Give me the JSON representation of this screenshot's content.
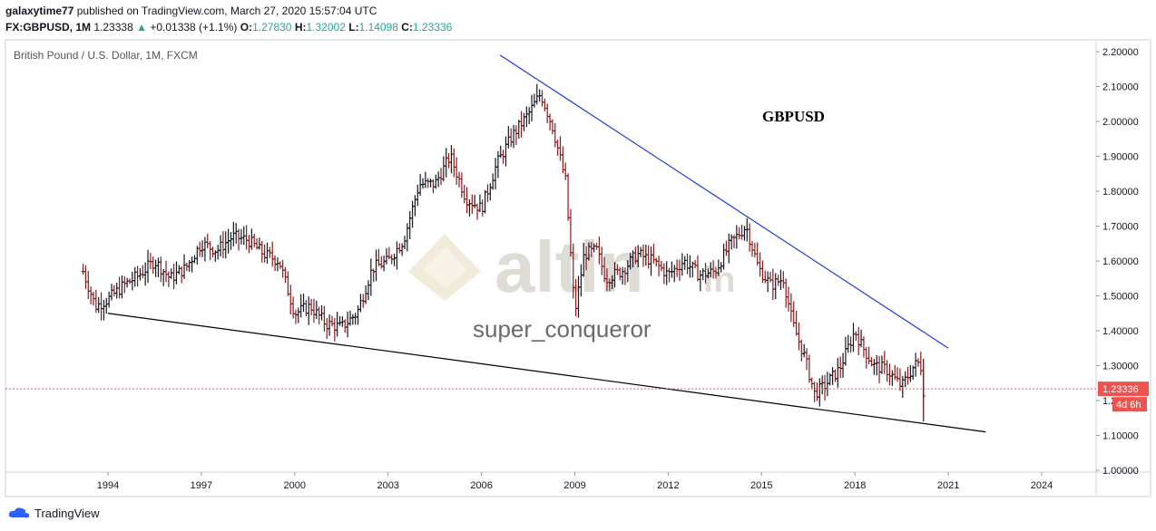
{
  "header": {
    "line1": {
      "user": "galaxytime77",
      "published": "published on TradingView.com, March 27, 2020 15:57:04 UTC"
    },
    "line2": {
      "symbol": "FX:GBPUSD, 1M",
      "last": "1.23338",
      "arrow": "▲",
      "change": "+0.01338 (+1.1%)",
      "o_label": "O:",
      "o": "1.27830",
      "h_label": "H:",
      "h": "1.32002",
      "l_label": "L:",
      "l": "1.14098",
      "c_label": "C:",
      "c": "1.23336"
    }
  },
  "watermark": {
    "brand": "altin",
    "brand_suffix": "in",
    "author": "super_conqueror"
  },
  "footer": {
    "brand": "TradingView"
  },
  "colors": {
    "up": "#26a69a",
    "bar": "#131722",
    "down_bar": "#8b1a1a",
    "trend_upper": "#1f3fd6",
    "trend_lower": "#000000",
    "price_marker": "#ef5350"
  },
  "chart_data": {
    "type": "ohlc",
    "title": "British Pound / U.S. Dollar, 1M, FXCM",
    "annotation": "GBPUSD",
    "x_tick_labels": [
      "1994",
      "1997",
      "2000",
      "2003",
      "2006",
      "2009",
      "2012",
      "2015",
      "2018",
      "2021",
      "2024"
    ],
    "y_tick_labels": [
      "1.00000",
      "1.10000",
      "1.20000",
      "1.30000",
      "1.40000",
      "1.50000",
      "1.60000",
      "1.70000",
      "1.80000",
      "1.90000",
      "2.00000",
      "2.10000",
      "2.20000"
    ],
    "ylim": [
      1.0,
      2.2
    ],
    "xlim": [
      1993.0,
      2026.0
    ],
    "last_price": "1.23336",
    "countdown": "4d 6h",
    "price_series": {
      "x": [
        1993.2,
        1993.6,
        1994.0,
        1994.5,
        1995.0,
        1995.5,
        1996.0,
        1996.5,
        1997.0,
        1997.5,
        1998.0,
        1998.5,
        1999.0,
        1999.5,
        2000.0,
        2000.5,
        2001.0,
        2001.5,
        2002.0,
        2002.5,
        2003.0,
        2003.5,
        2004.0,
        2004.5,
        2005.0,
        2005.5,
        2006.0,
        2006.5,
        2007.0,
        2007.5,
        2007.9,
        2008.3,
        2008.7,
        2009.0,
        2009.3,
        2009.7,
        2010.0,
        2010.5,
        2011.0,
        2011.5,
        2012.0,
        2012.5,
        2013.0,
        2013.5,
        2014.0,
        2014.5,
        2014.9,
        2015.3,
        2015.7,
        2016.0,
        2016.4,
        2016.7,
        2017.0,
        2017.5,
        2018.0,
        2018.2,
        2018.6,
        2019.0,
        2019.5,
        2019.9,
        2020.1,
        2020.2
      ],
      "y": [
        1.57,
        1.47,
        1.49,
        1.53,
        1.56,
        1.6,
        1.55,
        1.58,
        1.65,
        1.63,
        1.67,
        1.66,
        1.62,
        1.6,
        1.45,
        1.47,
        1.42,
        1.41,
        1.45,
        1.58,
        1.6,
        1.66,
        1.82,
        1.82,
        1.9,
        1.78,
        1.75,
        1.88,
        1.96,
        2.02,
        2.08,
        1.98,
        1.83,
        1.45,
        1.62,
        1.63,
        1.55,
        1.57,
        1.62,
        1.6,
        1.56,
        1.6,
        1.56,
        1.57,
        1.65,
        1.7,
        1.58,
        1.53,
        1.55,
        1.42,
        1.32,
        1.22,
        1.24,
        1.29,
        1.4,
        1.36,
        1.3,
        1.29,
        1.24,
        1.3,
        1.31,
        1.23
      ]
    },
    "trendlines": [
      {
        "name": "upper",
        "x": [
          2006.6,
          2021.0
        ],
        "y": [
          2.19,
          1.35
        ]
      },
      {
        "name": "lower",
        "x": [
          1994.0,
          2022.2
        ],
        "y": [
          1.45,
          1.11
        ]
      }
    ]
  }
}
